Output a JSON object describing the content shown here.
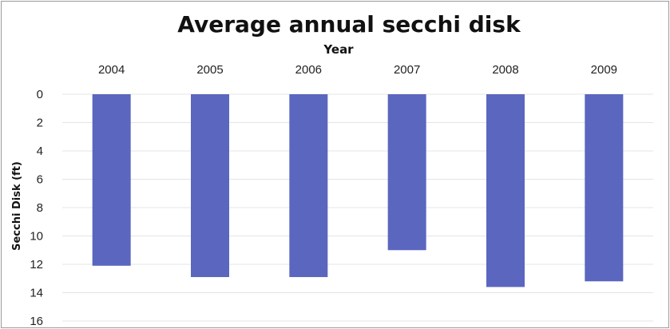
{
  "chart_data": {
    "type": "bar",
    "title": "Average annual secchi disk",
    "xlabel": "Year",
    "ylabel": "Secchi Disk (ft)",
    "categories": [
      "2004",
      "2005",
      "2006",
      "2007",
      "2008",
      "2009"
    ],
    "values": [
      12.1,
      12.9,
      12.9,
      11.0,
      13.6,
      13.2
    ],
    "ylim": [
      0,
      16
    ],
    "y_ticks": [
      "0",
      "2",
      "4",
      "6",
      "8",
      "10",
      "12",
      "14",
      "16"
    ],
    "y_axis_inverted": true,
    "x_axis_position": "top",
    "grid": true,
    "legend": "none",
    "colors": {
      "bar": "#5b66bf",
      "grid": "#e4e4e4",
      "border": "#9a9a9a"
    }
  }
}
